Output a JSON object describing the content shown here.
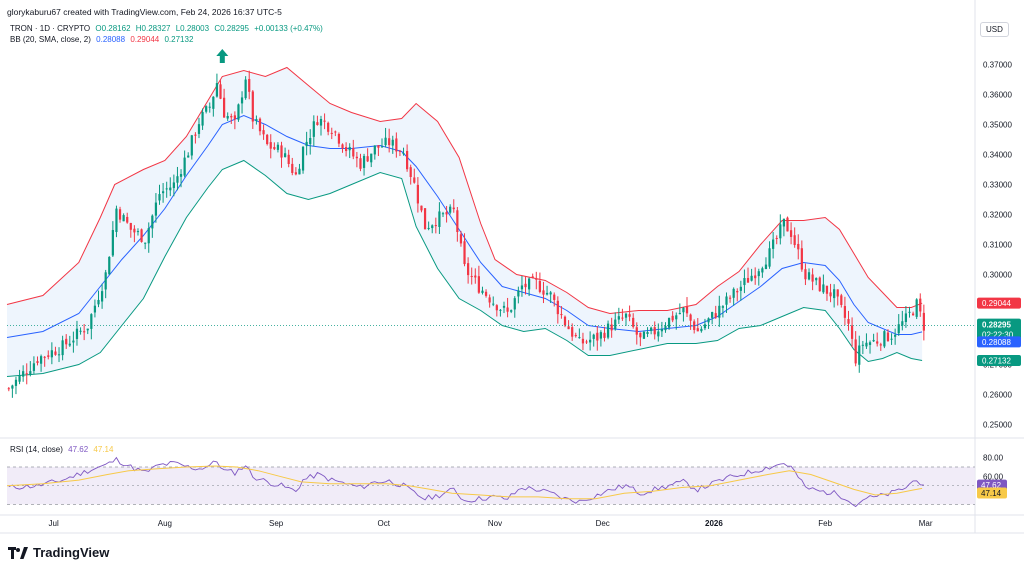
{
  "caption": "gloryk​aburu67 created with TradingView.com, Feb 24, 2026 16:37 UTC-5",
  "legend_main": {
    "symbol": "TRON · 1D · CRYPTO",
    "open": "O0.28162",
    "high": "H0.28327",
    "low": "L0.28003",
    "close": "C0.28295",
    "change": "+0.00133 (+0.47%)"
  },
  "legend_bb": {
    "label": "BB (20, SMA, close, 2)",
    "mid": "0.28088",
    "upper": "0.29044",
    "lower": "0.27132"
  },
  "legend_rsi": {
    "label": "RSI (14, close)",
    "rsi": "47.62",
    "ma": "47.14"
  },
  "currency": "USD",
  "brand": "TradingView",
  "colors": {
    "up": "#089981",
    "down": "#f23645",
    "bb_mid": "#2962ff",
    "bb_upper": "#f23645",
    "bb_lower": "#089981",
    "bb_fill": "#eaf2fc",
    "rsi_line": "#7e57c2",
    "rsi_ma": "#f7c948",
    "rsi_band": "#ede7f6"
  },
  "chart_data": [
    {
      "type": "candlestick",
      "title": "TRON · 1D · CRYPTO",
      "y_axis_ticks": [
        0.25,
        0.26,
        0.27,
        0.28,
        0.29,
        0.3,
        0.31,
        0.32,
        0.33,
        0.34,
        0.35,
        0.36,
        0.37
      ],
      "y_tick_labels": [
        "0.25000",
        "0.26000",
        "0.27000",
        "0.28000",
        "0.29000",
        "0.30000",
        "0.31000",
        "0.32000",
        "0.33000",
        "0.34000",
        "0.35000",
        "0.36000",
        "0.37000"
      ],
      "ylim": [
        0.2475,
        0.3755
      ],
      "x_axis_labels": [
        {
          "label": "Jul",
          "day": 13
        },
        {
          "label": "Aug",
          "day": 44
        },
        {
          "label": "Sep",
          "day": 75
        },
        {
          "label": "Oct",
          "day": 105
        },
        {
          "label": "Nov",
          "day": 136
        },
        {
          "label": "Dec",
          "day": 166
        },
        {
          "label": "2026",
          "day": 197
        },
        {
          "label": "Feb",
          "day": 228
        },
        {
          "label": "Mar",
          "day": 256
        }
      ],
      "xlim": [
        0,
        260
      ],
      "close_path": [
        [
          0,
          0.262
        ],
        [
          8,
          0.272
        ],
        [
          15,
          0.276
        ],
        [
          22,
          0.283
        ],
        [
          27,
          0.3
        ],
        [
          30,
          0.322
        ],
        [
          34,
          0.315
        ],
        [
          38,
          0.312
        ],
        [
          42,
          0.327
        ],
        [
          46,
          0.33
        ],
        [
          50,
          0.341
        ],
        [
          53,
          0.351
        ],
        [
          56,
          0.356
        ],
        [
          58,
          0.364
        ],
        [
          60,
          0.354
        ],
        [
          63,
          0.35
        ],
        [
          66,
          0.366
        ],
        [
          68,
          0.352
        ],
        [
          72,
          0.343
        ],
        [
          76,
          0.341
        ],
        [
          80,
          0.333
        ],
        [
          82,
          0.342
        ],
        [
          86,
          0.352
        ],
        [
          90,
          0.349
        ],
        [
          94,
          0.342
        ],
        [
          98,
          0.337
        ],
        [
          102,
          0.342
        ],
        [
          106,
          0.344
        ],
        [
          110,
          0.341
        ],
        [
          113,
          0.33
        ],
        [
          116,
          0.316
        ],
        [
          120,
          0.319
        ],
        [
          124,
          0.321
        ],
        [
          127,
          0.302
        ],
        [
          131,
          0.296
        ],
        [
          135,
          0.291
        ],
        [
          139,
          0.287
        ],
        [
          143,
          0.296
        ],
        [
          147,
          0.297
        ],
        [
          151,
          0.293
        ],
        [
          155,
          0.284
        ],
        [
          159,
          0.277
        ],
        [
          164,
          0.279
        ],
        [
          168,
          0.283
        ],
        [
          172,
          0.286
        ],
        [
          176,
          0.278
        ],
        [
          180,
          0.281
        ],
        [
          184,
          0.285
        ],
        [
          188,
          0.288
        ],
        [
          192,
          0.281
        ],
        [
          196,
          0.286
        ],
        [
          200,
          0.291
        ],
        [
          204,
          0.296
        ],
        [
          208,
          0.301
        ],
        [
          212,
          0.307
        ],
        [
          216,
          0.317
        ],
        [
          218,
          0.314
        ],
        [
          222,
          0.3
        ],
        [
          226,
          0.296
        ],
        [
          230,
          0.293
        ],
        [
          234,
          0.283
        ],
        [
          236,
          0.272
        ],
        [
          238,
          0.277
        ],
        [
          242,
          0.278
        ],
        [
          246,
          0.28
        ],
        [
          250,
          0.285
        ],
        [
          253,
          0.29
        ],
        [
          255,
          0.28295
        ]
      ],
      "last_price": 0.28295,
      "countdown": "02:22:30",
      "bollinger_bands": {
        "params": "BB (20, SMA, close, 2)",
        "upper": [
          [
            0,
            0.29
          ],
          [
            10,
            0.293
          ],
          [
            20,
            0.304
          ],
          [
            26,
            0.319
          ],
          [
            30,
            0.33
          ],
          [
            38,
            0.335
          ],
          [
            44,
            0.338
          ],
          [
            50,
            0.346
          ],
          [
            56,
            0.358
          ],
          [
            60,
            0.366
          ],
          [
            66,
            0.368
          ],
          [
            72,
            0.366
          ],
          [
            78,
            0.369
          ],
          [
            84,
            0.363
          ],
          [
            90,
            0.357
          ],
          [
            96,
            0.354
          ],
          [
            104,
            0.351
          ],
          [
            110,
            0.352
          ],
          [
            114,
            0.357
          ],
          [
            120,
            0.351
          ],
          [
            126,
            0.339
          ],
          [
            132,
            0.317
          ],
          [
            136,
            0.305
          ],
          [
            142,
            0.3
          ],
          [
            150,
            0.298
          ],
          [
            156,
            0.294
          ],
          [
            162,
            0.289
          ],
          [
            168,
            0.287
          ],
          [
            176,
            0.288
          ],
          [
            184,
            0.288
          ],
          [
            192,
            0.29
          ],
          [
            198,
            0.296
          ],
          [
            204,
            0.301
          ],
          [
            210,
            0.31
          ],
          [
            216,
            0.318
          ],
          [
            222,
            0.318
          ],
          [
            228,
            0.319
          ],
          [
            232,
            0.315
          ],
          [
            236,
            0.307
          ],
          [
            240,
            0.299
          ],
          [
            244,
            0.294
          ],
          [
            248,
            0.289
          ],
          [
            252,
            0.289
          ],
          [
            255,
            0.29044
          ]
        ],
        "middle": [
          [
            0,
            0.279
          ],
          [
            10,
            0.281
          ],
          [
            20,
            0.287
          ],
          [
            26,
            0.296
          ],
          [
            32,
            0.305
          ],
          [
            38,
            0.313
          ],
          [
            44,
            0.322
          ],
          [
            50,
            0.333
          ],
          [
            56,
            0.343
          ],
          [
            60,
            0.35
          ],
          [
            66,
            0.353
          ],
          [
            72,
            0.35
          ],
          [
            78,
            0.346
          ],
          [
            84,
            0.343
          ],
          [
            90,
            0.342
          ],
          [
            96,
            0.342
          ],
          [
            104,
            0.343
          ],
          [
            110,
            0.341
          ],
          [
            114,
            0.336
          ],
          [
            120,
            0.326
          ],
          [
            126,
            0.315
          ],
          [
            132,
            0.304
          ],
          [
            138,
            0.296
          ],
          [
            144,
            0.294
          ],
          [
            150,
            0.292
          ],
          [
            156,
            0.288
          ],
          [
            162,
            0.283
          ],
          [
            168,
            0.282
          ],
          [
            176,
            0.281
          ],
          [
            184,
            0.282
          ],
          [
            192,
            0.283
          ],
          [
            198,
            0.286
          ],
          [
            204,
            0.291
          ],
          [
            210,
            0.296
          ],
          [
            216,
            0.302
          ],
          [
            222,
            0.304
          ],
          [
            228,
            0.303
          ],
          [
            232,
            0.298
          ],
          [
            236,
            0.29
          ],
          [
            240,
            0.284
          ],
          [
            244,
            0.282
          ],
          [
            248,
            0.28
          ],
          [
            252,
            0.28
          ],
          [
            255,
            0.28088
          ]
        ],
        "lower": [
          [
            0,
            0.266
          ],
          [
            10,
            0.267
          ],
          [
            20,
            0.27
          ],
          [
            26,
            0.274
          ],
          [
            32,
            0.283
          ],
          [
            38,
            0.292
          ],
          [
            44,
            0.306
          ],
          [
            50,
            0.319
          ],
          [
            56,
            0.329
          ],
          [
            60,
            0.335
          ],
          [
            66,
            0.338
          ],
          [
            72,
            0.333
          ],
          [
            78,
            0.327
          ],
          [
            84,
            0.325
          ],
          [
            90,
            0.327
          ],
          [
            96,
            0.33
          ],
          [
            104,
            0.334
          ],
          [
            110,
            0.332
          ],
          [
            114,
            0.316
          ],
          [
            120,
            0.302
          ],
          [
            126,
            0.292
          ],
          [
            132,
            0.288
          ],
          [
            138,
            0.283
          ],
          [
            144,
            0.281
          ],
          [
            150,
            0.282
          ],
          [
            156,
            0.278
          ],
          [
            162,
            0.273
          ],
          [
            168,
            0.273
          ],
          [
            176,
            0.275
          ],
          [
            184,
            0.277
          ],
          [
            192,
            0.277
          ],
          [
            198,
            0.278
          ],
          [
            204,
            0.282
          ],
          [
            210,
            0.283
          ],
          [
            216,
            0.286
          ],
          [
            222,
            0.289
          ],
          [
            228,
            0.288
          ],
          [
            232,
            0.282
          ],
          [
            236,
            0.275
          ],
          [
            240,
            0.271
          ],
          [
            244,
            0.272
          ],
          [
            248,
            0.274
          ],
          [
            252,
            0.272
          ],
          [
            255,
            0.27132
          ]
        ],
        "upper_value": 0.29044,
        "middle_value": 0.28088,
        "lower_value": 0.27132
      },
      "annotation": {
        "type": "up-arrow",
        "day": 60,
        "price": 0.3725
      }
    },
    {
      "type": "line",
      "title": "RSI (14, close)",
      "y_axis_ticks": [
        60,
        80
      ],
      "y_tick_labels": [
        "60.00",
        "80.00"
      ],
      "band": [
        30,
        70
      ],
      "ylim": [
        24,
        86
      ],
      "rsi": [
        [
          0,
          48
        ],
        [
          8,
          50
        ],
        [
          15,
          56
        ],
        [
          22,
          66
        ],
        [
          27,
          72
        ],
        [
          30,
          78
        ],
        [
          34,
          70
        ],
        [
          38,
          64
        ],
        [
          42,
          72
        ],
        [
          46,
          74
        ],
        [
          50,
          70
        ],
        [
          53,
          68
        ],
        [
          56,
          72
        ],
        [
          58,
          76
        ],
        [
          60,
          66
        ],
        [
          63,
          64
        ],
        [
          66,
          72
        ],
        [
          68,
          60
        ],
        [
          72,
          54
        ],
        [
          76,
          50
        ],
        [
          80,
          44
        ],
        [
          82,
          56
        ],
        [
          86,
          62
        ],
        [
          90,
          56
        ],
        [
          94,
          52
        ],
        [
          98,
          48
        ],
        [
          102,
          54
        ],
        [
          106,
          55
        ],
        [
          110,
          50
        ],
        [
          113,
          42
        ],
        [
          116,
          36
        ],
        [
          120,
          40
        ],
        [
          124,
          46
        ],
        [
          127,
          34
        ],
        [
          131,
          36
        ],
        [
          135,
          38
        ],
        [
          139,
          36
        ],
        [
          143,
          48
        ],
        [
          147,
          46
        ],
        [
          151,
          42
        ],
        [
          155,
          36
        ],
        [
          159,
          33
        ],
        [
          164,
          40
        ],
        [
          168,
          46
        ],
        [
          172,
          50
        ],
        [
          176,
          42
        ],
        [
          180,
          46
        ],
        [
          184,
          50
        ],
        [
          188,
          54
        ],
        [
          192,
          46
        ],
        [
          196,
          52
        ],
        [
          200,
          58
        ],
        [
          204,
          62
        ],
        [
          208,
          66
        ],
        [
          212,
          70
        ],
        [
          216,
          74
        ],
        [
          218,
          70
        ],
        [
          222,
          48
        ],
        [
          226,
          44
        ],
        [
          230,
          42
        ],
        [
          234,
          36
        ],
        [
          236,
          28
        ],
        [
          238,
          36
        ],
        [
          242,
          38
        ],
        [
          246,
          42
        ],
        [
          250,
          48
        ],
        [
          253,
          58
        ],
        [
          255,
          47.62
        ]
      ],
      "rsi_ma": [
        [
          0,
          50
        ],
        [
          10,
          52
        ],
        [
          20,
          56
        ],
        [
          28,
          62
        ],
        [
          34,
          66
        ],
        [
          42,
          68
        ],
        [
          50,
          70
        ],
        [
          58,
          71
        ],
        [
          64,
          70
        ],
        [
          70,
          66
        ],
        [
          76,
          60
        ],
        [
          82,
          54
        ],
        [
          90,
          52
        ],
        [
          98,
          52
        ],
        [
          106,
          52
        ],
        [
          112,
          50
        ],
        [
          118,
          46
        ],
        [
          124,
          42
        ],
        [
          132,
          40
        ],
        [
          140,
          38
        ],
        [
          148,
          38
        ],
        [
          156,
          36
        ],
        [
          164,
          36
        ],
        [
          172,
          42
        ],
        [
          180,
          44
        ],
        [
          188,
          48
        ],
        [
          196,
          50
        ],
        [
          204,
          56
        ],
        [
          212,
          62
        ],
        [
          218,
          66
        ],
        [
          224,
          62
        ],
        [
          230,
          54
        ],
        [
          236,
          46
        ],
        [
          242,
          40
        ],
        [
          248,
          42
        ],
        [
          252,
          45
        ],
        [
          255,
          47.14
        ]
      ],
      "rsi_value": 47.62,
      "ma_value": 47.14
    }
  ]
}
